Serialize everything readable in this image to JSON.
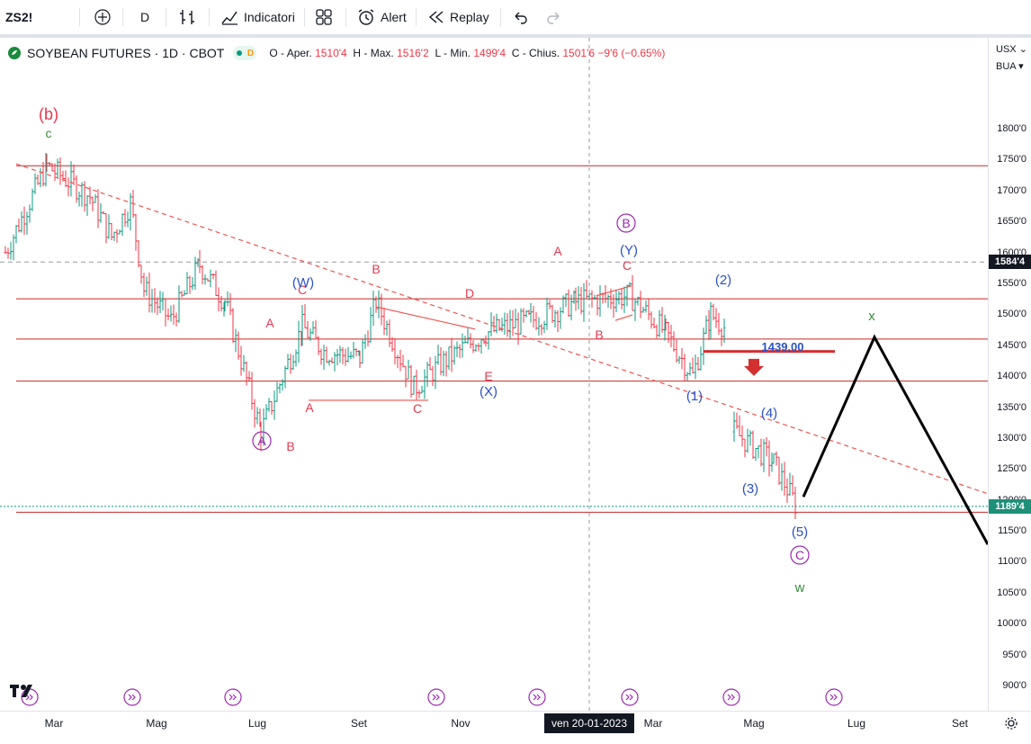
{
  "toolbar": {
    "symbol": "ZS2!",
    "interval": "D",
    "indicators_label": "Indicatori",
    "alert_label": "Alert",
    "replay_label": "Replay"
  },
  "legend": {
    "title": "SOYBEAN FUTURES · 1D · CBOT",
    "badge": "D",
    "o_label": "O - Aper.",
    "o_value": "1510'4",
    "h_label": "H - Max.",
    "h_value": "1516'2",
    "l_label": "L - Min.",
    "l_value": "1499'4",
    "c_label": "C - Chius.",
    "c_value": "1501'6",
    "change": "−9'6 (−0.65%)"
  },
  "axis": {
    "currency": "USX",
    "unit": "BUA",
    "y_ticks": [
      "1800'0",
      "1750'0",
      "1700'0",
      "1650'0",
      "1600'0",
      "1550'0",
      "1500'0",
      "1450'0",
      "1400'0",
      "1350'0",
      "1300'0",
      "1250'0",
      "1200'0",
      "1150'0",
      "1100'0",
      "1050'0",
      "1000'0",
      "950'0",
      "900'0"
    ],
    "last_price_tag": "1189'4",
    "level_tag": "1584'4",
    "x_ticks": [
      "Mar",
      "Mag",
      "Lug",
      "Set",
      "Nov",
      "Mar",
      "Mag",
      "Lug",
      "Set"
    ],
    "crosshair_date": "ven 20-01-2023"
  },
  "colors": {
    "bull": "#089981",
    "bear": "#f23645",
    "red_label": "#e53950",
    "blue_label": "#2a50c8",
    "purple_label": "#9c27b0",
    "green_label": "#388e3c"
  },
  "chart_data": {
    "type": "ohlc-bar",
    "symbol": "SOYBEAN FUTURES",
    "timeframe": "1D",
    "exchange": "CBOT",
    "ylim": [
      880,
      1850
    ],
    "series": [
      {
        "date": "2022-02",
        "close": 1600
      },
      {
        "date": "2022-02-end",
        "close": 1740
      },
      {
        "date": "2022-03",
        "close": 1690
      },
      {
        "date": "2022-04-early",
        "close": 1625
      },
      {
        "date": "2022-04",
        "close": 1680
      },
      {
        "date": "2022-05-early",
        "close": 1540
      },
      {
        "date": "2022-05",
        "close": 1490
      },
      {
        "date": "2022-06",
        "close": 1580
      },
      {
        "date": "2022-06-end",
        "close": 1520
      },
      {
        "date": "2022-07",
        "close": 1310
      },
      {
        "date": "2022-07-end",
        "close": 1480
      },
      {
        "date": "2022-08",
        "close": 1440
      },
      {
        "date": "2022-08-end",
        "close": 1430
      },
      {
        "date": "2022-09",
        "close": 1520
      },
      {
        "date": "2022-10",
        "close": 1380
      },
      {
        "date": "2022-10-end",
        "close": 1420
      },
      {
        "date": "2022-11",
        "close": 1470
      },
      {
        "date": "2022-12",
        "close": 1490
      },
      {
        "date": "2023-01",
        "close": 1520
      },
      {
        "date": "2023-02",
        "close": 1530
      },
      {
        "date": "2023-03",
        "close": 1470
      },
      {
        "date": "2023-03-end",
        "close": 1400
      },
      {
        "date": "2023-04",
        "close": 1500
      },
      {
        "date": "2023-04-end",
        "close": 1475
      },
      {
        "date": "2023-05",
        "close": 1310
      },
      {
        "date": "2023-05-mid",
        "close": 1260
      },
      {
        "date": "2023-06",
        "close": 1190
      }
    ],
    "horizontal_levels": [
      1740,
      1584.5,
      1525,
      1460,
      1392,
      1180
    ],
    "annotations": {
      "price_note": "1439,00",
      "wave_labels_red": [
        "(b)",
        "A",
        "B",
        "C",
        "D",
        "E",
        "A",
        "B",
        "C",
        "A",
        "B",
        "C"
      ],
      "wave_labels_blue": [
        "(W)",
        "(X)",
        "(Y)",
        "(1)",
        "(2)",
        "(3)",
        "(4)",
        "(5)"
      ],
      "wave_labels_purple": [
        "A",
        "B",
        "C"
      ],
      "wave_labels_green": [
        "c",
        "x",
        "w"
      ]
    }
  }
}
